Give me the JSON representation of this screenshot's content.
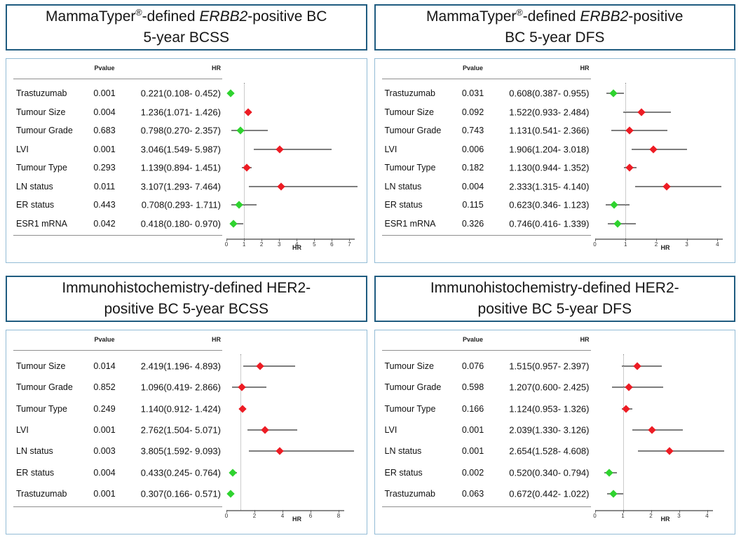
{
  "figure": {
    "title_border_color": "#1f5c80",
    "plot_border_color": "#93bcd6",
    "marker_red": "#ed1c24",
    "marker_green": "#2fd32f",
    "line_color": "#7d7d7d"
  },
  "chart_data": [
    {
      "type": "scatter",
      "forest_plot": true,
      "title": "MammaTyper®-defined ERBB2-positive BC 5-year BCSS",
      "title_line1": {
        "brand": "MammaTyper",
        "reg": "®",
        "mid": "-defined ",
        "italic": "ERBB2",
        "tail": "-positive BC"
      },
      "title_line2": "5-year BCSS",
      "col_pvalue": "Pvalue",
      "col_hr": "HR",
      "xlabel": "HR",
      "xlim": [
        0,
        7.5
      ],
      "ticks": [
        0,
        1,
        2,
        3,
        4,
        5,
        6,
        7
      ],
      "refline": 1,
      "legend": "green = HR < 1, red = HR > 1",
      "rows": [
        {
          "label": "Trastuzumab",
          "pvalue": "0.001",
          "hr_text": "0.221(0.108- 0.452)",
          "hr": 0.221,
          "lo": 0.108,
          "hi": 0.452,
          "color": "green"
        },
        {
          "label": "Tumour Size",
          "pvalue": "0.004",
          "hr_text": "1.236(1.071- 1.426)",
          "hr": 1.236,
          "lo": 1.071,
          "hi": 1.426,
          "color": "red"
        },
        {
          "label": "Tumour Grade",
          "pvalue": "0.683",
          "hr_text": "0.798(0.270- 2.357)",
          "hr": 0.798,
          "lo": 0.27,
          "hi": 2.357,
          "color": "green"
        },
        {
          "label": "LVI",
          "pvalue": "0.001",
          "hr_text": "3.046(1.549- 5.987)",
          "hr": 3.046,
          "lo": 1.549,
          "hi": 5.987,
          "color": "red"
        },
        {
          "label": "Tumour Type",
          "pvalue": "0.293",
          "hr_text": "1.139(0.894- 1.451)",
          "hr": 1.139,
          "lo": 0.894,
          "hi": 1.451,
          "color": "red"
        },
        {
          "label": "LN status",
          "pvalue": "0.011",
          "hr_text": "3.107(1.293- 7.464)",
          "hr": 3.107,
          "lo": 1.293,
          "hi": 7.464,
          "color": "red"
        },
        {
          "label": "ER status",
          "pvalue": "0.443",
          "hr_text": "0.708(0.293- 1.711)",
          "hr": 0.708,
          "lo": 0.293,
          "hi": 1.711,
          "color": "green"
        },
        {
          "label": "ESR1 mRNA",
          "pvalue": "0.042",
          "hr_text": "0.418(0.180- 0.970)",
          "hr": 0.418,
          "lo": 0.18,
          "hi": 0.97,
          "color": "green"
        }
      ]
    },
    {
      "type": "scatter",
      "forest_plot": true,
      "title": "MammaTyper®-defined ERBB2-positive BC 5-year DFS",
      "title_line1": {
        "brand": "MammaTyper",
        "reg": "®",
        "mid": "-defined ",
        "italic": "ERBB2",
        "tail": "-positive"
      },
      "title_line2": "BC 5-year DFS",
      "col_pvalue": "Pvalue",
      "col_hr": "HR",
      "xlabel": "HR",
      "xlim": [
        0,
        4.3
      ],
      "ticks": [
        0,
        1,
        2,
        3,
        4
      ],
      "refline": 1,
      "legend": "green = HR < 1, red = HR > 1",
      "rows": [
        {
          "label": "Trastuzumab",
          "pvalue": "0.031",
          "hr_text": "0.608(0.387- 0.955)",
          "hr": 0.608,
          "lo": 0.387,
          "hi": 0.955,
          "color": "green"
        },
        {
          "label": "Tumour Size",
          "pvalue": "0.092",
          "hr_text": "1.522(0.933- 2.484)",
          "hr": 1.522,
          "lo": 0.933,
          "hi": 2.484,
          "color": "red"
        },
        {
          "label": "Tumour Grade",
          "pvalue": "0.743",
          "hr_text": "1.131(0.541- 2.366)",
          "hr": 1.131,
          "lo": 0.541,
          "hi": 2.366,
          "color": "red"
        },
        {
          "label": "LVI",
          "pvalue": "0.006",
          "hr_text": "1.906(1.204- 3.018)",
          "hr": 1.906,
          "lo": 1.204,
          "hi": 3.018,
          "color": "red"
        },
        {
          "label": "Tumour Type",
          "pvalue": "0.182",
          "hr_text": "1.130(0.944- 1.352)",
          "hr": 1.13,
          "lo": 0.944,
          "hi": 1.352,
          "color": "red"
        },
        {
          "label": "LN status",
          "pvalue": "0.004",
          "hr_text": "2.333(1.315- 4.140)",
          "hr": 2.333,
          "lo": 1.315,
          "hi": 4.14,
          "color": "red"
        },
        {
          "label": "ER status",
          "pvalue": "0.115",
          "hr_text": "0.623(0.346- 1.123)",
          "hr": 0.623,
          "lo": 0.346,
          "hi": 1.123,
          "color": "green"
        },
        {
          "label": "ESR1 mRNA",
          "pvalue": "0.326",
          "hr_text": "0.746(0.416- 1.339)",
          "hr": 0.746,
          "lo": 0.416,
          "hi": 1.339,
          "color": "green"
        }
      ]
    },
    {
      "type": "scatter",
      "forest_plot": true,
      "title": "Immunohistochemistry-defined HER2-positive BC 5-year BCSS",
      "title_line1": {
        "brand": "",
        "reg": "",
        "mid": "",
        "italic": "",
        "tail": "Immunohistochemistry-defined HER2-"
      },
      "title_line2": "positive BC 5-year BCSS",
      "col_pvalue": "Pvalue",
      "col_hr": "HR",
      "xlabel": "HR",
      "xlim": [
        0,
        9.4
      ],
      "ticks": [
        0,
        2,
        4,
        6,
        8
      ],
      "refline": 1,
      "legend": "green = HR < 1, red = HR > 1",
      "rows": [
        {
          "label": "Tumour Size",
          "pvalue": "0.014",
          "hr_text": "2.419(1.196- 4.893)",
          "hr": 2.419,
          "lo": 1.196,
          "hi": 4.893,
          "color": "red"
        },
        {
          "label": "Tumour Grade",
          "pvalue": "0.852",
          "hr_text": "1.096(0.419- 2.866)",
          "hr": 1.096,
          "lo": 0.419,
          "hi": 2.866,
          "color": "red"
        },
        {
          "label": "Tumour Type",
          "pvalue": "0.249",
          "hr_text": "1.140(0.912- 1.424)",
          "hr": 1.14,
          "lo": 0.912,
          "hi": 1.424,
          "color": "red"
        },
        {
          "label": "LVI",
          "pvalue": "0.001",
          "hr_text": "2.762(1.504- 5.071)",
          "hr": 2.762,
          "lo": 1.504,
          "hi": 5.071,
          "color": "red"
        },
        {
          "label": "LN status",
          "pvalue": "0.003",
          "hr_text": "3.805(1.592- 9.093)",
          "hr": 3.805,
          "lo": 1.592,
          "hi": 9.093,
          "color": "red"
        },
        {
          "label": "ER status",
          "pvalue": "0.004",
          "hr_text": "0.433(0.245- 0.764)",
          "hr": 0.433,
          "lo": 0.245,
          "hi": 0.764,
          "color": "green"
        },
        {
          "label": "Trastuzumab",
          "pvalue": "0.001",
          "hr_text": "0.307(0.166- 0.571)",
          "hr": 0.307,
          "lo": 0.166,
          "hi": 0.571,
          "color": "green"
        }
      ]
    },
    {
      "type": "scatter",
      "forest_plot": true,
      "title": "Immunohistochemistry-defined HER2-positive BC 5-year DFS",
      "title_line1": {
        "brand": "",
        "reg": "",
        "mid": "",
        "italic": "",
        "tail": "Immunohistochemistry-defined HER2-"
      },
      "title_line2": "positive BC 5-year DFS",
      "col_pvalue": "Pvalue",
      "col_hr": "HR",
      "xlabel": "HR",
      "xlim": [
        0,
        4.7
      ],
      "ticks": [
        0,
        1,
        2,
        3,
        4
      ],
      "refline": 1,
      "legend": "green = HR < 1, red = HR > 1",
      "rows": [
        {
          "label": "Tumour Size",
          "pvalue": "0.076",
          "hr_text": "1.515(0.957- 2.397)",
          "hr": 1.515,
          "lo": 0.957,
          "hi": 2.397,
          "color": "red"
        },
        {
          "label": "Tumour Grade",
          "pvalue": "0.598",
          "hr_text": "1.207(0.600- 2.425)",
          "hr": 1.207,
          "lo": 0.6,
          "hi": 2.425,
          "color": "red"
        },
        {
          "label": "Tumour Type",
          "pvalue": "0.166",
          "hr_text": "1.124(0.953- 1.326)",
          "hr": 1.124,
          "lo": 0.953,
          "hi": 1.326,
          "color": "red"
        },
        {
          "label": "LVI",
          "pvalue": "0.001",
          "hr_text": "2.039(1.330- 3.126)",
          "hr": 2.039,
          "lo": 1.33,
          "hi": 3.126,
          "color": "red"
        },
        {
          "label": "LN status",
          "pvalue": "0.001",
          "hr_text": "2.654(1.528- 4.608)",
          "hr": 2.654,
          "lo": 1.528,
          "hi": 4.608,
          "color": "red"
        },
        {
          "label": "ER status",
          "pvalue": "0.002",
          "hr_text": "0.520(0.340- 0.794)",
          "hr": 0.52,
          "lo": 0.34,
          "hi": 0.794,
          "color": "green"
        },
        {
          "label": "Trastuzumab",
          "pvalue": "0.063",
          "hr_text": "0.672(0.442- 1.022)",
          "hr": 0.672,
          "lo": 0.442,
          "hi": 1.022,
          "color": "green"
        }
      ]
    }
  ]
}
